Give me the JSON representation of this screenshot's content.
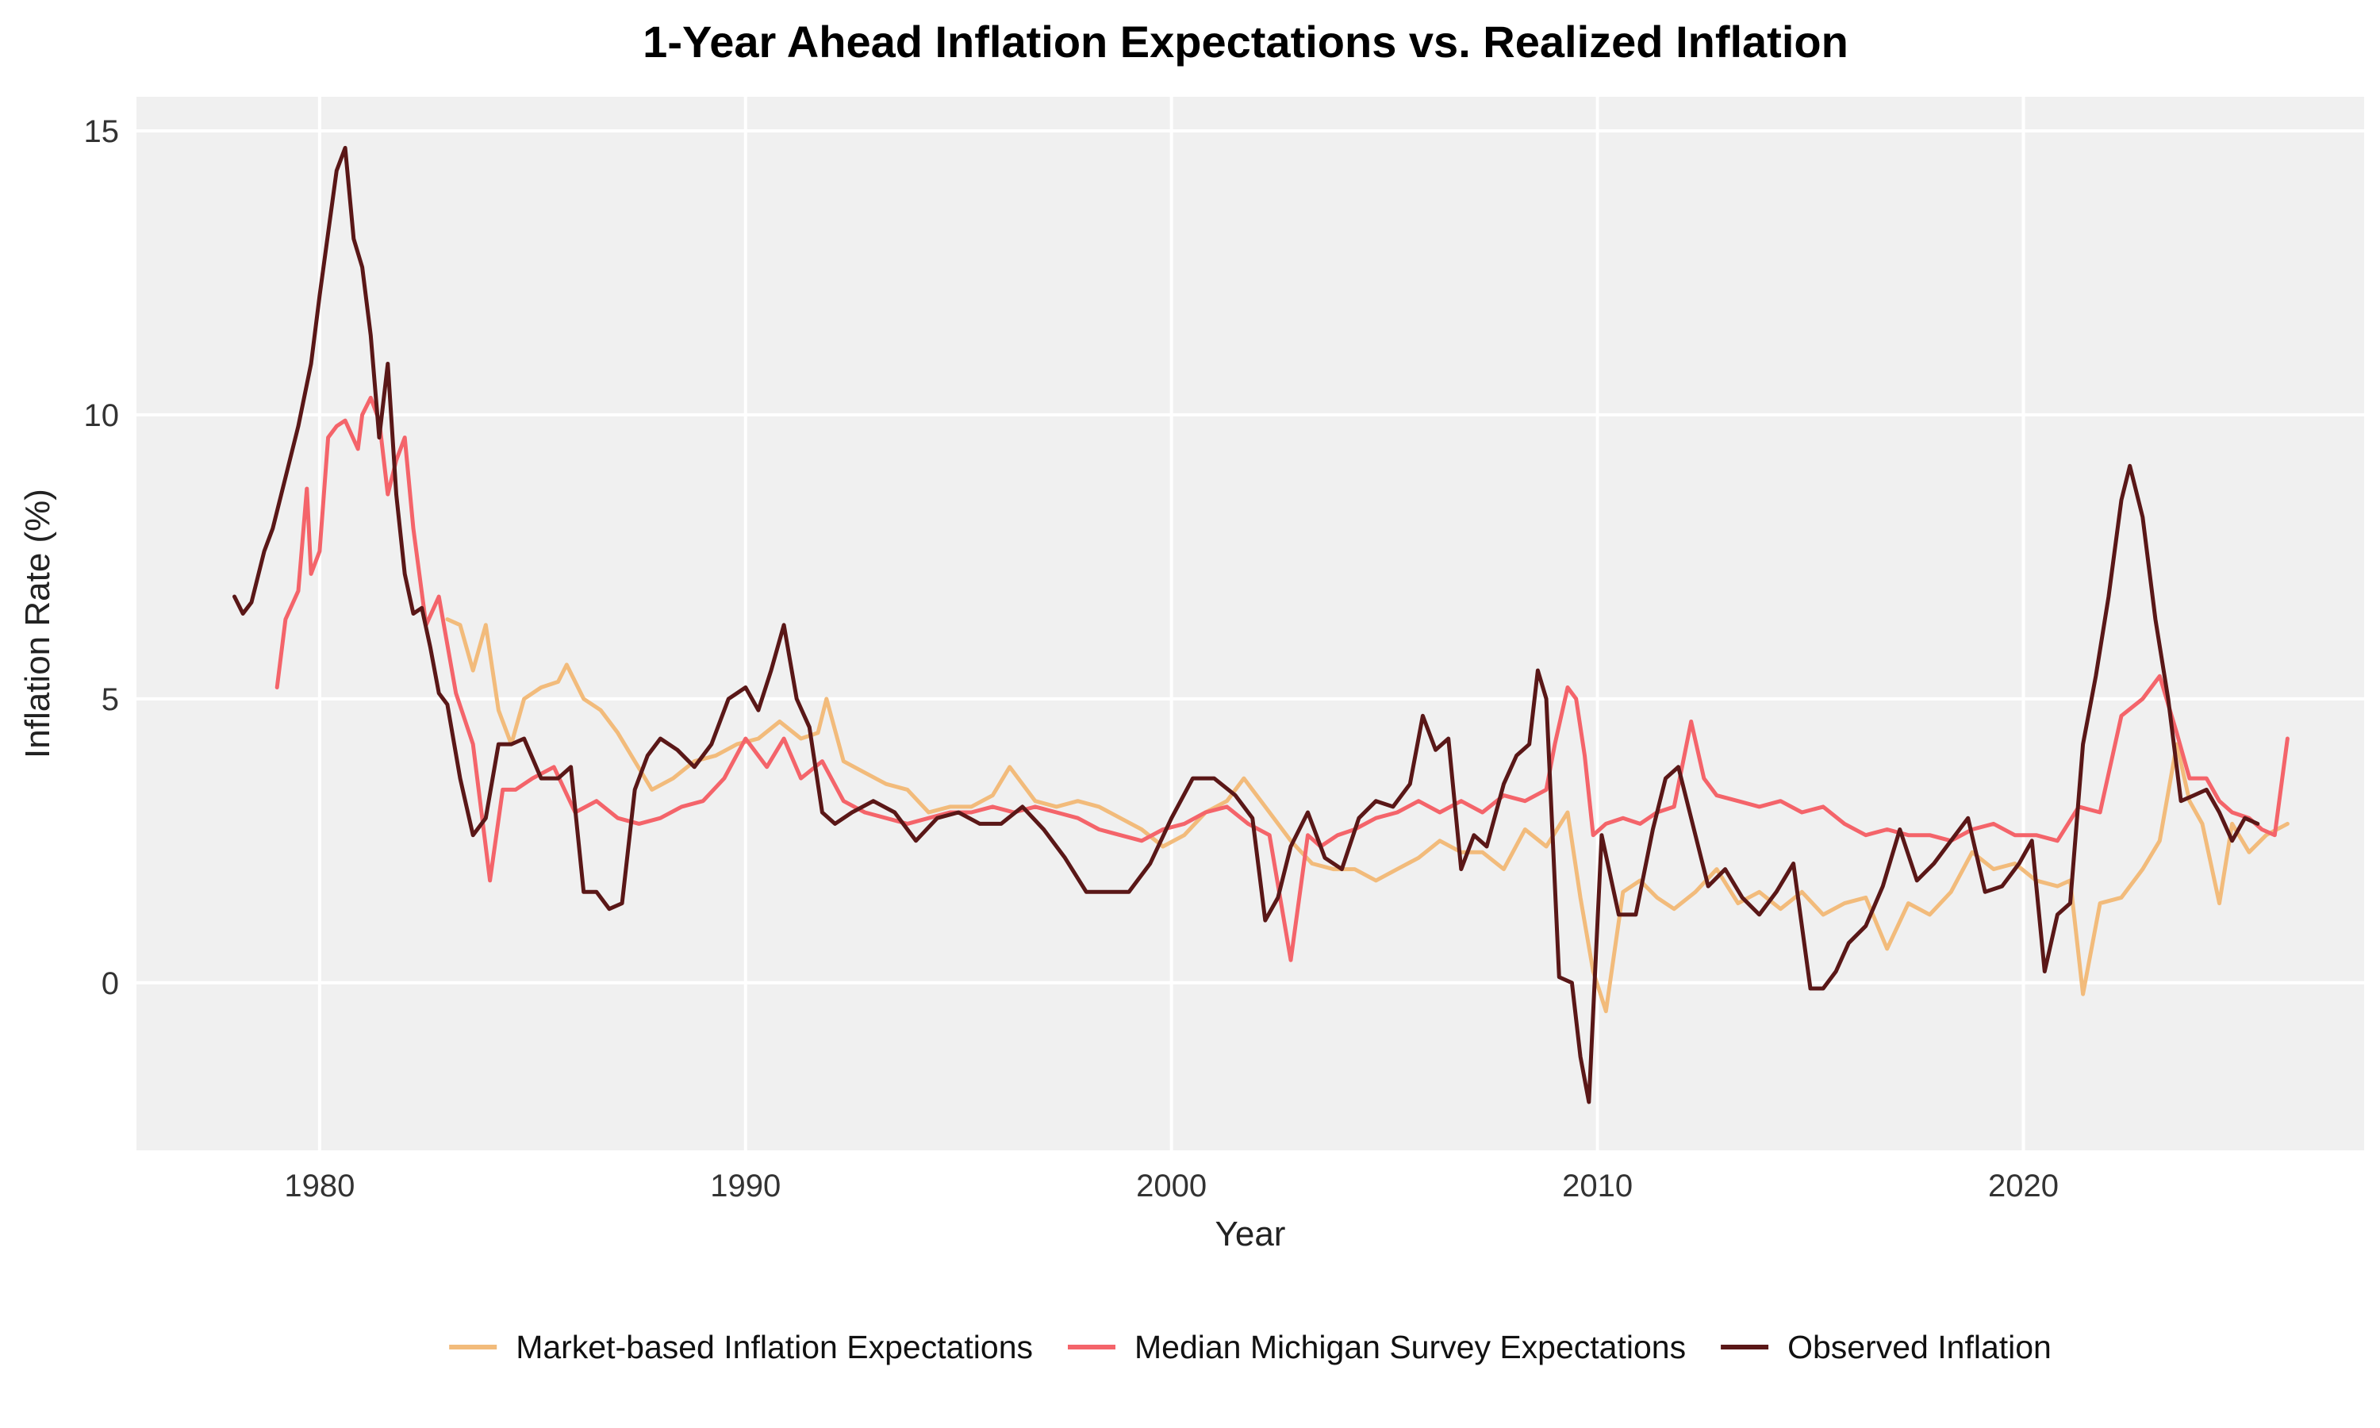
{
  "chart_data": {
    "type": "line",
    "title": "1-Year Ahead Inflation Expectations vs. Realized Inflation",
    "xlabel": "Year",
    "ylabel": "Inflation Rate (%)",
    "xlim": [
      1975.7,
      2028.0
    ],
    "ylim": [
      -2.95,
      15.6
    ],
    "x_ticks": [
      1980,
      1990,
      2000,
      2010,
      2020
    ],
    "y_ticks": [
      0,
      5,
      10,
      15
    ],
    "grid": true,
    "legend_position": "bottom",
    "series": [
      {
        "name": "Market-based Inflation Expectations",
        "color": "#F2BB7B",
        "x": [
          1983.0,
          1983.3,
          1983.6,
          1983.9,
          1984.2,
          1984.5,
          1984.8,
          1985.2,
          1985.6,
          1985.8,
          1986.2,
          1986.6,
          1987.0,
          1987.4,
          1987.8,
          1988.3,
          1988.8,
          1989.3,
          1989.8,
          1990.3,
          1990.8,
          1991.3,
          1991.7,
          1991.9,
          1992.3,
          1992.8,
          1993.3,
          1993.8,
          1994.3,
          1994.8,
          1995.3,
          1995.8,
          1996.2,
          1996.8,
          1997.3,
          1997.8,
          1998.3,
          1998.8,
          1999.3,
          1999.8,
          2000.3,
          2000.8,
          2001.3,
          2001.7,
          2002.3,
          2002.8,
          2003.3,
          2003.8,
          2004.3,
          2004.8,
          2005.3,
          2005.8,
          2006.3,
          2006.8,
          2007.3,
          2007.8,
          2008.3,
          2008.8,
          2009.3,
          2009.6,
          2009.9,
          2010.2,
          2010.6,
          2011.0,
          2011.4,
          2011.8,
          2012.3,
          2012.8,
          2013.3,
          2013.8,
          2014.3,
          2014.8,
          2015.3,
          2015.8,
          2016.3,
          2016.8,
          2017.3,
          2017.8,
          2018.3,
          2018.8,
          2019.3,
          2019.8,
          2020.3,
          2020.8,
          2021.1,
          2021.4,
          2021.8,
          2022.3,
          2022.8,
          2023.2,
          2023.6,
          2023.9,
          2024.2,
          2024.6,
          2024.9,
          2025.3,
          2025.7,
          2026.2
        ],
        "values": [
          6.4,
          6.3,
          5.5,
          6.3,
          4.8,
          4.2,
          5.0,
          5.2,
          5.3,
          5.6,
          5.0,
          4.8,
          4.4,
          3.9,
          3.4,
          3.6,
          3.9,
          4.0,
          4.2,
          4.3,
          4.6,
          4.3,
          4.4,
          5.0,
          3.9,
          3.7,
          3.5,
          3.4,
          3.0,
          3.1,
          3.1,
          3.3,
          3.8,
          3.2,
          3.1,
          3.2,
          3.1,
          2.9,
          2.7,
          2.4,
          2.6,
          3.0,
          3.2,
          3.6,
          3.0,
          2.5,
          2.1,
          2.0,
          2.0,
          1.8,
          2.0,
          2.2,
          2.5,
          2.3,
          2.3,
          2.0,
          2.7,
          2.4,
          3.0,
          1.5,
          0.2,
          -0.5,
          1.6,
          1.8,
          1.5,
          1.3,
          1.6,
          2.0,
          1.4,
          1.6,
          1.3,
          1.6,
          1.2,
          1.4,
          1.5,
          0.6,
          1.4,
          1.2,
          1.6,
          2.3,
          2.0,
          2.1,
          1.8,
          1.7,
          1.8,
          -0.2,
          1.4,
          1.5,
          2.0,
          2.5,
          4.2,
          3.2,
          2.8,
          1.4,
          2.8,
          2.3,
          2.6,
          2.8
        ]
      },
      {
        "name": "Median Michigan Survey Expectations",
        "color": "#F4646A",
        "x": [
          1979.0,
          1979.2,
          1979.5,
          1979.7,
          1979.8,
          1980.0,
          1980.2,
          1980.4,
          1980.6,
          1980.9,
          1981.0,
          1981.2,
          1981.4,
          1981.6,
          1981.8,
          1982.0,
          1982.2,
          1982.5,
          1982.8,
          1983.2,
          1983.6,
          1984.0,
          1984.3,
          1984.6,
          1985.0,
          1985.5,
          1986.0,
          1986.5,
          1987.0,
          1987.5,
          1988.0,
          1988.5,
          1989.0,
          1989.5,
          1990.0,
          1990.5,
          1990.9,
          1991.3,
          1991.8,
          1992.3,
          1992.8,
          1993.3,
          1993.8,
          1994.3,
          1994.8,
          1995.3,
          1995.8,
          1996.3,
          1996.8,
          1997.3,
          1997.8,
          1998.3,
          1998.8,
          1999.3,
          1999.8,
          2000.3,
          2000.8,
          2001.3,
          2001.8,
          2002.3,
          2002.8,
          2003.2,
          2003.5,
          2003.9,
          2004.3,
          2004.8,
          2005.3,
          2005.8,
          2006.3,
          2006.8,
          2007.3,
          2007.8,
          2008.3,
          2008.8,
          2009.0,
          2009.3,
          2009.5,
          2009.7,
          2009.9,
          2010.2,
          2010.6,
          2011.0,
          2011.4,
          2011.8,
          2012.2,
          2012.5,
          2012.8,
          2013.3,
          2013.8,
          2014.3,
          2014.8,
          2015.3,
          2015.8,
          2016.3,
          2016.8,
          2017.3,
          2017.8,
          2018.3,
          2018.8,
          2019.3,
          2019.8,
          2020.3,
          2020.8,
          2021.3,
          2021.8,
          2022.3,
          2022.8,
          2023.2,
          2023.6,
          2023.9,
          2024.3,
          2024.6,
          2024.9,
          2025.3,
          2025.6,
          2025.9,
          2026.2
        ],
        "values": [
          5.2,
          6.4,
          6.9,
          8.7,
          7.2,
          7.6,
          9.6,
          9.8,
          9.9,
          9.4,
          10.0,
          10.3,
          9.9,
          8.6,
          9.2,
          9.6,
          8.0,
          6.3,
          6.8,
          5.1,
          4.2,
          1.8,
          3.4,
          3.4,
          3.6,
          3.8,
          3.0,
          3.2,
          2.9,
          2.8,
          2.9,
          3.1,
          3.2,
          3.6,
          4.3,
          3.8,
          4.3,
          3.6,
          3.9,
          3.2,
          3.0,
          2.9,
          2.8,
          2.9,
          3.0,
          3.0,
          3.1,
          3.0,
          3.1,
          3.0,
          2.9,
          2.7,
          2.6,
          2.5,
          2.7,
          2.8,
          3.0,
          3.1,
          2.8,
          2.6,
          0.4,
          2.6,
          2.4,
          2.6,
          2.7,
          2.9,
          3.0,
          3.2,
          3.0,
          3.2,
          3.0,
          3.3,
          3.2,
          3.4,
          4.2,
          5.2,
          5.0,
          4.0,
          2.6,
          2.8,
          2.9,
          2.8,
          3.0,
          3.1,
          4.6,
          3.6,
          3.3,
          3.2,
          3.1,
          3.2,
          3.0,
          3.1,
          2.8,
          2.6,
          2.7,
          2.6,
          2.6,
          2.5,
          2.7,
          2.8,
          2.6,
          2.6,
          2.5,
          3.1,
          3.0,
          4.7,
          5.0,
          5.4,
          4.4,
          3.6,
          3.6,
          3.2,
          3.0,
          2.9,
          2.7,
          2.6,
          4.3
        ]
      },
      {
        "name": "Observed Inflation",
        "color": "#5A1717",
        "x": [
          1978.0,
          1978.2,
          1978.4,
          1978.7,
          1978.9,
          1979.2,
          1979.5,
          1979.8,
          1980.0,
          1980.2,
          1980.4,
          1980.6,
          1980.8,
          1981.0,
          1981.2,
          1981.4,
          1981.6,
          1981.8,
          1982.0,
          1982.2,
          1982.4,
          1982.6,
          1982.8,
          1983.0,
          1983.3,
          1983.6,
          1983.9,
          1984.2,
          1984.5,
          1984.8,
          1985.2,
          1985.6,
          1985.9,
          1986.2,
          1986.5,
          1986.8,
          1987.1,
          1987.4,
          1987.7,
          1988.0,
          1988.4,
          1988.8,
          1989.2,
          1989.6,
          1990.0,
          1990.3,
          1990.6,
          1990.9,
          1991.2,
          1991.5,
          1991.8,
          1992.1,
          1992.5,
          1993.0,
          1993.5,
          1994.0,
          1994.5,
          1995.0,
          1995.5,
          1996.0,
          1996.5,
          1997.0,
          1997.5,
          1998.0,
          1998.5,
          1999.0,
          1999.5,
          2000.0,
          2000.5,
          2001.0,
          2001.5,
          2001.9,
          2002.2,
          2002.5,
          2002.8,
          2003.2,
          2003.6,
          2004.0,
          2004.4,
          2004.8,
          2005.2,
          2005.6,
          2005.9,
          2006.2,
          2006.5,
          2006.8,
          2007.1,
          2007.4,
          2007.8,
          2008.1,
          2008.4,
          2008.6,
          2008.8,
          2009.1,
          2009.4,
          2009.6,
          2009.8,
          2010.1,
          2010.5,
          2010.9,
          2011.3,
          2011.6,
          2011.9,
          2012.2,
          2012.6,
          2013.0,
          2013.4,
          2013.8,
          2014.2,
          2014.6,
          2015.0,
          2015.3,
          2015.6,
          2015.9,
          2016.3,
          2016.7,
          2017.1,
          2017.5,
          2017.9,
          2018.3,
          2018.7,
          2019.1,
          2019.5,
          2019.9,
          2020.2,
          2020.5,
          2020.8,
          2021.1,
          2021.4,
          2021.7,
          2022.0,
          2022.3,
          2022.5,
          2022.8,
          2023.1,
          2023.4,
          2023.7,
          2024.0,
          2024.3,
          2024.6,
          2024.9,
          2025.2,
          2025.5
        ],
        "values": [
          6.8,
          6.5,
          6.7,
          7.6,
          8.0,
          8.9,
          9.8,
          10.9,
          12.1,
          13.2,
          14.3,
          14.7,
          13.1,
          12.6,
          11.4,
          9.6,
          10.9,
          8.6,
          7.2,
          6.5,
          6.6,
          5.9,
          5.1,
          4.9,
          3.6,
          2.6,
          2.9,
          4.2,
          4.2,
          4.3,
          3.6,
          3.6,
          3.8,
          1.6,
          1.6,
          1.3,
          1.4,
          3.4,
          4.0,
          4.3,
          4.1,
          3.8,
          4.2,
          5.0,
          5.2,
          4.8,
          5.5,
          6.3,
          5.0,
          4.5,
          3.0,
          2.8,
          3.0,
          3.2,
          3.0,
          2.5,
          2.9,
          3.0,
          2.8,
          2.8,
          3.1,
          2.7,
          2.2,
          1.6,
          1.6,
          1.6,
          2.1,
          2.9,
          3.6,
          3.6,
          3.3,
          2.9,
          1.1,
          1.5,
          2.4,
          3.0,
          2.2,
          2.0,
          2.9,
          3.2,
          3.1,
          3.5,
          4.7,
          4.1,
          4.3,
          2.0,
          2.6,
          2.4,
          3.5,
          4.0,
          4.2,
          5.5,
          5.0,
          0.1,
          0.0,
          -1.3,
          -2.1,
          2.6,
          1.2,
          1.2,
          2.7,
          3.6,
          3.8,
          2.9,
          1.7,
          2.0,
          1.5,
          1.2,
          1.6,
          2.1,
          -0.1,
          -0.1,
          0.2,
          0.7,
          1.0,
          1.7,
          2.7,
          1.8,
          2.1,
          2.5,
          2.9,
          1.6,
          1.7,
          2.1,
          2.5,
          0.2,
          1.2,
          1.4,
          4.2,
          5.4,
          6.8,
          8.5,
          9.1,
          8.2,
          6.4,
          5.0,
          3.2,
          3.3,
          3.4,
          3.0,
          2.5,
          2.9,
          2.8
        ]
      }
    ]
  }
}
